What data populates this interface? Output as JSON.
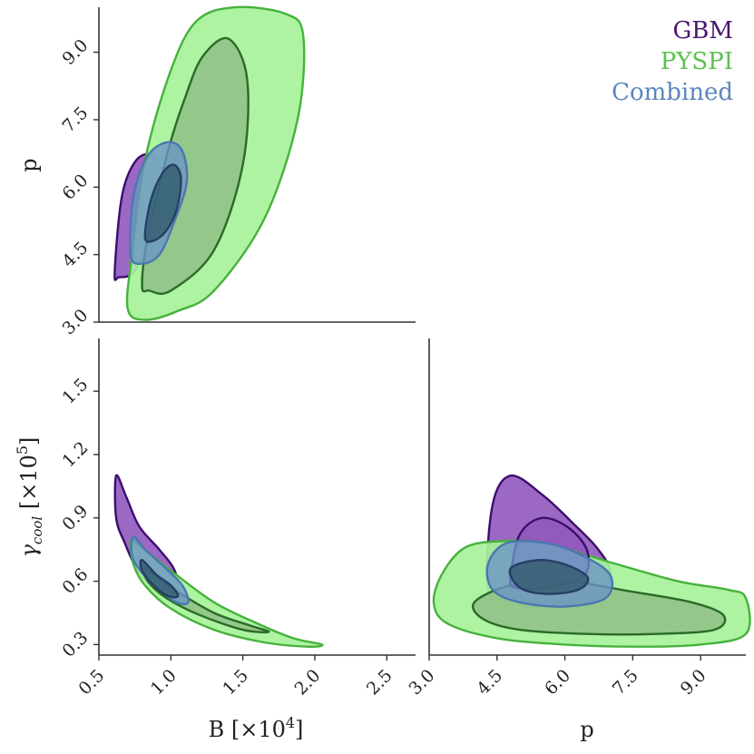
{
  "legend": [
    {
      "label": "GBM",
      "color": "#4b1570"
    },
    {
      "label": "PYSPI",
      "color": "#5cc24d"
    },
    {
      "label": "Combined",
      "color": "#5b86bd"
    }
  ],
  "axis_labels": {
    "p": "p",
    "B_main": "B [×10",
    "B_sup": "4",
    "B_tail": "]",
    "gamma_main": "γ",
    "gamma_sub": "cool",
    "gamma_unit_main": " [×10",
    "gamma_unit_sup": "5",
    "gamma_unit_tail": "]"
  },
  "colors": {
    "gbm_fill": "#8a4fb8",
    "gbm_edge": "#3d0e6e",
    "pyspi_fill": "#a6f29a",
    "pyspi_edge": "#46b23c",
    "pyspi_inner_fill": "#8fbf86",
    "pyspi_inner_edge": "#2a6b29",
    "comb_fill": "#6b93c7",
    "comb_edge": "#4a78b0",
    "comb_inner_fill": "#2f5a6a",
    "comb_inner_edge": "#263f66"
  },
  "chart_data": [
    {
      "type": "scatter",
      "panel": "B vs p",
      "xlabel": "",
      "ylabel": "p",
      "xlim": [
        0.5,
        2.7
      ],
      "ylim": [
        3.0,
        10.0
      ],
      "xticks": [],
      "yticks": [
        "3.0",
        "4.5",
        "6.0",
        "7.5",
        "9.0"
      ],
      "contours": [
        {
          "series": "GBM",
          "level": "outer",
          "points": [
            [
              0.61,
              4.1
            ],
            [
              0.66,
              5.8
            ],
            [
              0.76,
              6.6
            ],
            [
              0.88,
              6.7
            ],
            [
              0.95,
              6.2
            ],
            [
              0.93,
              5.6
            ],
            [
              0.84,
              4.7
            ],
            [
              0.74,
              4.1
            ],
            [
              0.64,
              4.0
            ]
          ]
        },
        {
          "series": "PYSPI",
          "level": "outer",
          "points": [
            [
              0.7,
              3.3
            ],
            [
              0.73,
              4.5
            ],
            [
              0.82,
              6.6
            ],
            [
              1.0,
              8.6
            ],
            [
              1.18,
              9.7
            ],
            [
              1.45,
              10.0
            ],
            [
              1.8,
              9.85
            ],
            [
              1.92,
              9.35
            ],
            [
              1.88,
              7.5
            ],
            [
              1.65,
              5.3
            ],
            [
              1.3,
              3.7
            ],
            [
              1.05,
              3.25
            ],
            [
              0.82,
              3.05
            ]
          ]
        },
        {
          "series": "PYSPI",
          "level": "inner",
          "points": [
            [
              0.8,
              3.8
            ],
            [
              0.84,
              4.9
            ],
            [
              0.98,
              6.8
            ],
            [
              1.1,
              8.0
            ],
            [
              1.22,
              8.9
            ],
            [
              1.4,
              9.3
            ],
            [
              1.53,
              8.4
            ],
            [
              1.5,
              6.5
            ],
            [
              1.3,
              4.6
            ],
            [
              1.0,
              3.7
            ],
            [
              0.85,
              3.7
            ]
          ]
        },
        {
          "series": "Combined",
          "level": "outer",
          "points": [
            [
              0.72,
              4.5
            ],
            [
              0.74,
              5.8
            ],
            [
              0.84,
              6.7
            ],
            [
              0.98,
              7.0
            ],
            [
              1.08,
              6.8
            ],
            [
              1.11,
              6.1
            ],
            [
              1.02,
              5.2
            ],
            [
              0.92,
              4.5
            ],
            [
              0.8,
              4.3
            ]
          ]
        },
        {
          "series": "Combined",
          "level": "inner",
          "points": [
            [
              0.82,
              4.9
            ],
            [
              0.86,
              5.7
            ],
            [
              0.94,
              6.3
            ],
            [
              1.02,
              6.5
            ],
            [
              1.07,
              6.2
            ],
            [
              1.04,
              5.5
            ],
            [
              0.96,
              5.0
            ],
            [
              0.87,
              4.8
            ]
          ]
        }
      ]
    },
    {
      "type": "scatter",
      "panel": "B vs gamma_cool",
      "xlabel": "B [×10^4]",
      "ylabel": "γ_cool [×10^5]",
      "xlim": [
        0.5,
        2.7
      ],
      "ylim": [
        0.25,
        1.75
      ],
      "xticks": [
        "0.5",
        "1.0",
        "1.5",
        "2.0",
        "2.5"
      ],
      "yticks": [
        "0.3",
        "0.6",
        "0.9",
        "1.2",
        "1.5"
      ],
      "contours": [
        {
          "series": "GBM",
          "level": "outer",
          "points": [
            [
              0.62,
              1.1
            ],
            [
              0.69,
              1.0
            ],
            [
              0.78,
              0.86
            ],
            [
              0.92,
              0.75
            ],
            [
              1.02,
              0.66
            ],
            [
              1.05,
              0.57
            ],
            [
              0.98,
              0.53
            ],
            [
              0.88,
              0.57
            ],
            [
              0.77,
              0.65
            ],
            [
              0.68,
              0.78
            ],
            [
              0.62,
              0.9
            ]
          ]
        },
        {
          "series": "PYSPI",
          "level": "outer",
          "points": [
            [
              0.72,
              0.79
            ],
            [
              0.78,
              0.77
            ],
            [
              1.0,
              0.65
            ],
            [
              1.3,
              0.5
            ],
            [
              1.6,
              0.4
            ],
            [
              1.85,
              0.33
            ],
            [
              2.05,
              0.3
            ],
            [
              1.95,
              0.29
            ],
            [
              1.65,
              0.31
            ],
            [
              1.3,
              0.37
            ],
            [
              1.0,
              0.47
            ],
            [
              0.82,
              0.58
            ],
            [
              0.74,
              0.68
            ]
          ]
        },
        {
          "series": "PYSPI",
          "level": "inner",
          "points": [
            [
              0.82,
              0.66
            ],
            [
              1.0,
              0.57
            ],
            [
              1.3,
              0.45
            ],
            [
              1.55,
              0.39
            ],
            [
              1.68,
              0.36
            ],
            [
              1.5,
              0.37
            ],
            [
              1.2,
              0.44
            ],
            [
              0.97,
              0.52
            ],
            [
              0.84,
              0.6
            ]
          ]
        },
        {
          "series": "Combined",
          "level": "outer",
          "points": [
            [
              0.74,
              0.81
            ],
            [
              0.82,
              0.75
            ],
            [
              0.95,
              0.67
            ],
            [
              1.08,
              0.58
            ],
            [
              1.12,
              0.5
            ],
            [
              1.04,
              0.5
            ],
            [
              0.92,
              0.56
            ],
            [
              0.8,
              0.64
            ],
            [
              0.73,
              0.72
            ]
          ]
        },
        {
          "series": "Combined",
          "level": "inner",
          "points": [
            [
              0.8,
              0.7
            ],
            [
              0.9,
              0.63
            ],
            [
              1.0,
              0.58
            ],
            [
              1.05,
              0.53
            ],
            [
              0.98,
              0.53
            ],
            [
              0.88,
              0.58
            ],
            [
              0.8,
              0.65
            ]
          ]
        }
      ]
    },
    {
      "type": "scatter",
      "panel": "p vs gamma_cool",
      "xlabel": "p",
      "ylabel": "",
      "xlim": [
        3.0,
        10.0
      ],
      "ylim": [
        0.25,
        1.75
      ],
      "xticks": [
        "3.0",
        "4.5",
        "6.0",
        "7.5",
        "9.0"
      ],
      "yticks": [],
      "contours": [
        {
          "series": "GBM",
          "level": "outer",
          "points": [
            [
              4.3,
              0.56
            ],
            [
              4.4,
              0.96
            ],
            [
              4.8,
              1.1
            ],
            [
              5.5,
              1.01
            ],
            [
              6.2,
              0.87
            ],
            [
              6.7,
              0.76
            ],
            [
              7.0,
              0.65
            ],
            [
              6.8,
              0.55
            ],
            [
              5.9,
              0.5
            ],
            [
              4.8,
              0.5
            ]
          ]
        },
        {
          "series": "GBM",
          "level": "inner",
          "points": [
            [
              4.8,
              0.62
            ],
            [
              5.0,
              0.82
            ],
            [
              5.5,
              0.9
            ],
            [
              6.1,
              0.85
            ],
            [
              6.5,
              0.74
            ],
            [
              6.4,
              0.62
            ],
            [
              5.6,
              0.57
            ],
            [
              4.9,
              0.57
            ]
          ]
        },
        {
          "series": "PYSPI",
          "level": "outer",
          "points": [
            [
              3.3,
              0.64
            ],
            [
              3.8,
              0.76
            ],
            [
              4.6,
              0.79
            ],
            [
              5.6,
              0.78
            ],
            [
              7.0,
              0.69
            ],
            [
              8.5,
              0.6
            ],
            [
              9.6,
              0.56
            ],
            [
              10.0,
              0.52
            ],
            [
              10.0,
              0.35
            ],
            [
              9.0,
              0.3
            ],
            [
              7.5,
              0.29
            ],
            [
              6.0,
              0.3
            ],
            [
              4.5,
              0.33
            ],
            [
              3.4,
              0.4
            ],
            [
              3.1,
              0.5
            ]
          ]
        },
        {
          "series": "PYSPI",
          "level": "inner",
          "points": [
            [
              4.0,
              0.5
            ],
            [
              4.8,
              0.58
            ],
            [
              6.0,
              0.6
            ],
            [
              7.5,
              0.55
            ],
            [
              8.8,
              0.5
            ],
            [
              9.5,
              0.44
            ],
            [
              9.3,
              0.37
            ],
            [
              8.0,
              0.35
            ],
            [
              6.5,
              0.35
            ],
            [
              5.0,
              0.37
            ],
            [
              4.2,
              0.42
            ]
          ]
        },
        {
          "series": "Combined",
          "level": "outer",
          "points": [
            [
              4.3,
              0.68
            ],
            [
              4.7,
              0.78
            ],
            [
              5.6,
              0.78
            ],
            [
              6.4,
              0.72
            ],
            [
              7.0,
              0.63
            ],
            [
              6.9,
              0.52
            ],
            [
              6.0,
              0.48
            ],
            [
              5.0,
              0.5
            ],
            [
              4.4,
              0.56
            ]
          ]
        },
        {
          "series": "Combined",
          "level": "inner",
          "points": [
            [
              4.8,
              0.66
            ],
            [
              5.4,
              0.7
            ],
            [
              6.0,
              0.68
            ],
            [
              6.5,
              0.62
            ],
            [
              6.3,
              0.56
            ],
            [
              5.6,
              0.54
            ],
            [
              5.0,
              0.57
            ]
          ]
        }
      ]
    }
  ]
}
